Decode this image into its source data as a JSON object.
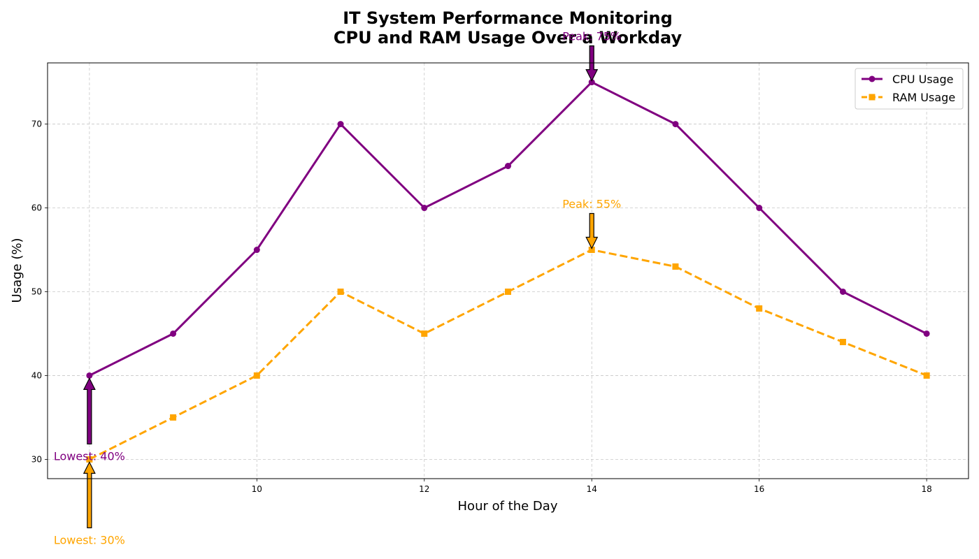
{
  "chart_data": {
    "type": "line",
    "title_lines": [
      "IT System Performance Monitoring",
      "CPU and RAM Usage Over a Workday"
    ],
    "xlabel": "Hour of the Day",
    "ylabel": "Usage (%)",
    "xlim": [
      7.5,
      18.5
    ],
    "ylim": [
      27.7,
      77.3
    ],
    "xticks": [
      8,
      10,
      12,
      14,
      16,
      18
    ],
    "yticks": [
      30,
      40,
      50,
      60,
      70
    ],
    "grid": true,
    "legend_position": "top-right",
    "x": [
      8,
      9,
      10,
      11,
      12,
      13,
      14,
      15,
      16,
      17,
      18
    ],
    "series": [
      {
        "name": "CPU Usage",
        "values": [
          40,
          45,
          55,
          70,
          60,
          65,
          75,
          70,
          60,
          50,
          45
        ],
        "color": "#800080",
        "line_style": "solid",
        "marker": "circle"
      },
      {
        "name": "RAM Usage",
        "values": [
          30,
          35,
          40,
          50,
          45,
          50,
          55,
          53,
          48,
          44,
          40
        ],
        "color": "#FFA500",
        "line_style": "dashed",
        "marker": "square"
      }
    ],
    "annotations": [
      {
        "text": "Peak: 75%",
        "x": 14,
        "y": 75,
        "color": "#800080",
        "kind": "peak"
      },
      {
        "text": "Lowest: 40%",
        "x": 8,
        "y": 40,
        "color": "#800080",
        "kind": "lowest"
      },
      {
        "text": "Peak: 55%",
        "x": 14,
        "y": 55,
        "color": "#FFA500",
        "kind": "peak"
      },
      {
        "text": "Lowest: 30%",
        "x": 8,
        "y": 30,
        "color": "#FFA500",
        "kind": "lowest"
      }
    ]
  }
}
